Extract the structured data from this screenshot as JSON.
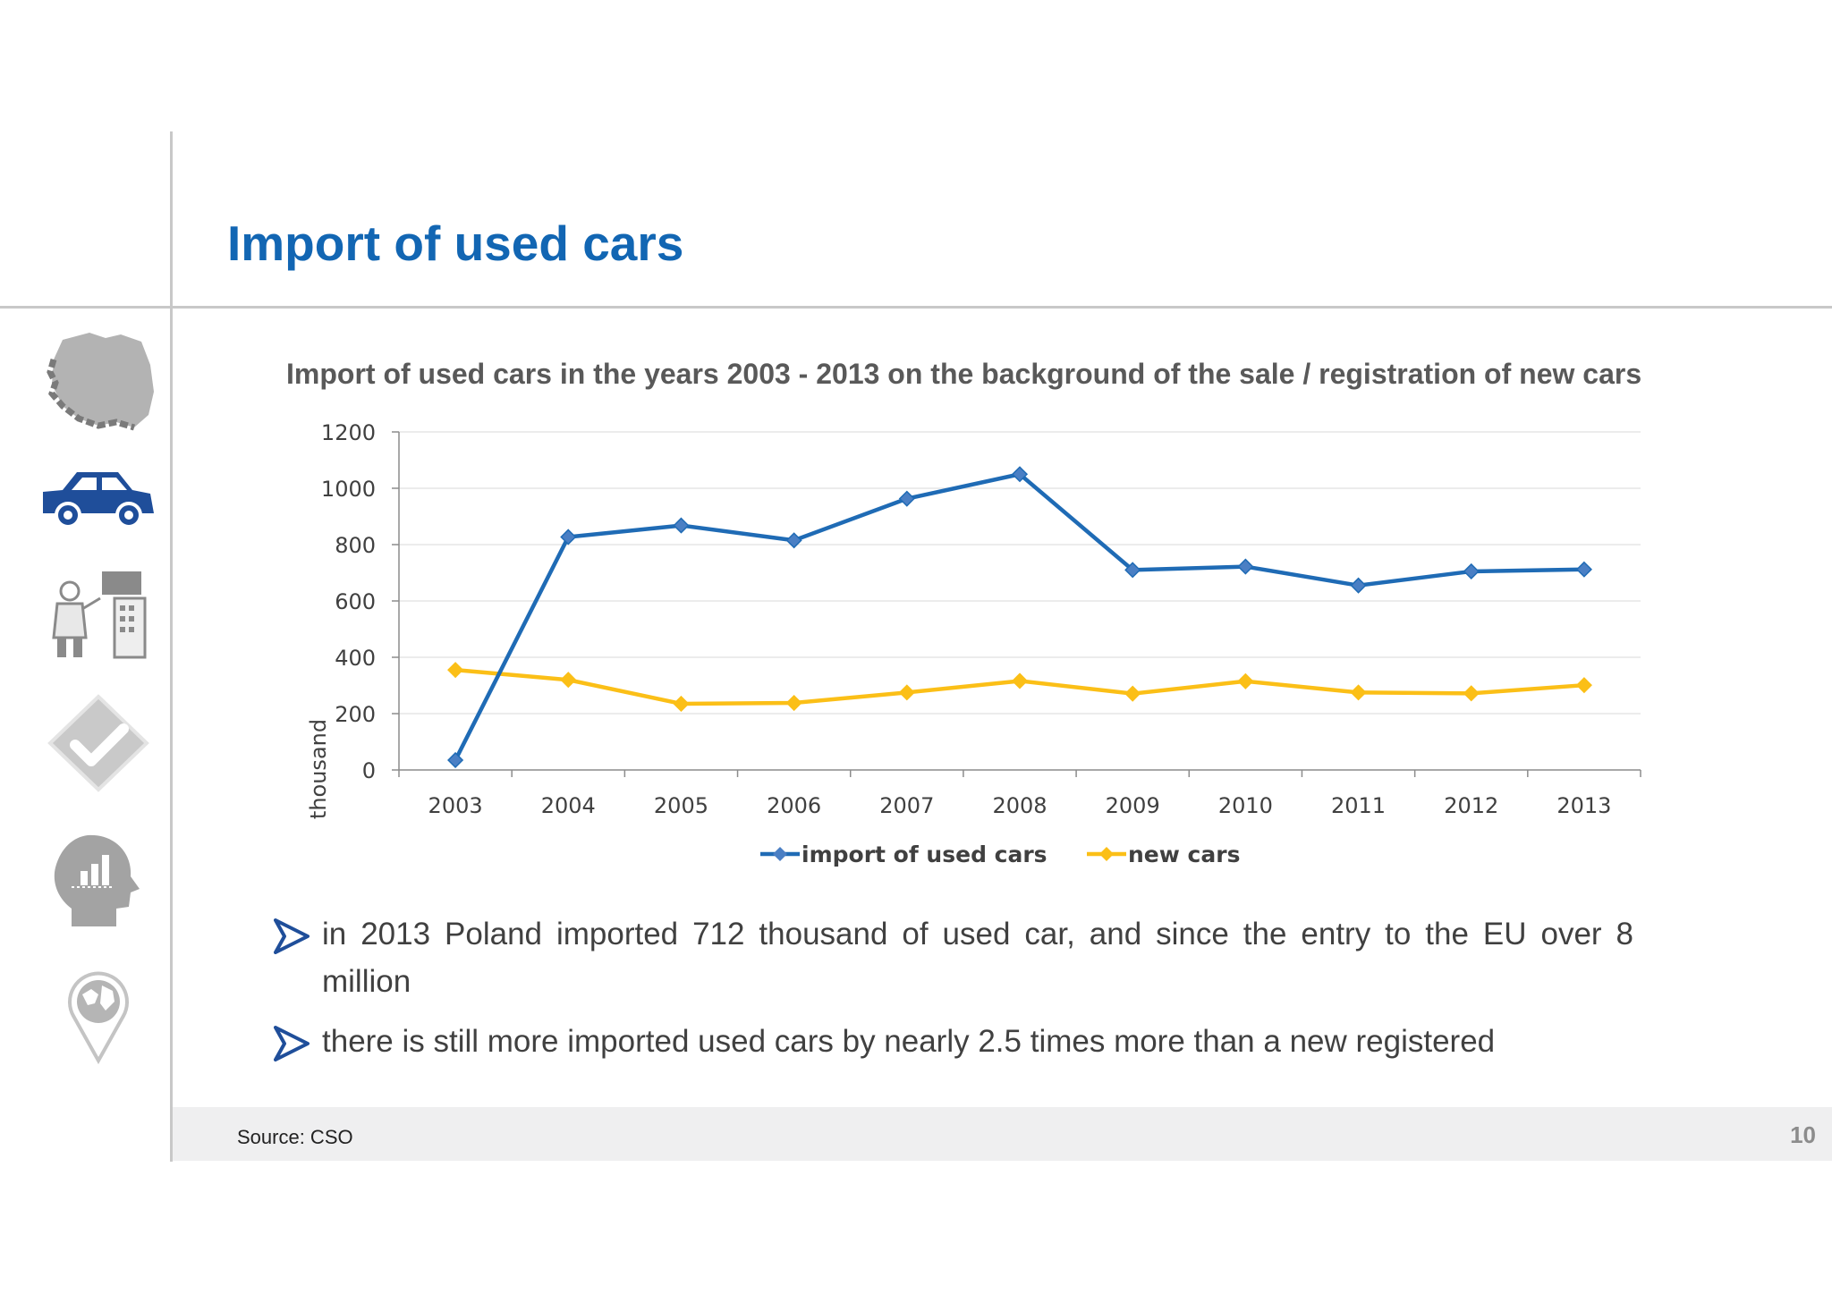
{
  "slide": {
    "title": "Import of used cars",
    "source": "Source: CSO",
    "page_number": "10"
  },
  "sidebar": {
    "icons": [
      "poland-map-icon",
      "car-icon",
      "doctor-machine-icon",
      "checkmark-icon",
      "head-chart-icon",
      "globe-pin-icon"
    ],
    "active_color": "#1f4e9a",
    "inactive_color": "#a6a6a6"
  },
  "bullets": [
    "in 2013 Poland imported 712 thousand of used car, and since the entry to the EU over 8 million",
    "there is still more imported used cars by nearly 2.5 times more than a new registered"
  ],
  "colors": {
    "title": "#1266b3",
    "bullet_arrow": "#1f4e9a"
  },
  "chart_data": {
    "type": "line",
    "title": "Import of used cars in the years 2003 - 2013 on the background of the sale / registration of new cars",
    "xlabel": "",
    "ylabel": "thousand",
    "ylim": [
      0,
      1200
    ],
    "yticks": [
      0,
      200,
      400,
      600,
      800,
      1000,
      1200
    ],
    "categories": [
      "2003",
      "2004",
      "2005",
      "2006",
      "2007",
      "2008",
      "2009",
      "2010",
      "2011",
      "2012",
      "2013"
    ],
    "series": [
      {
        "name": "import of used cars",
        "color": "#1f6bb5",
        "values": [
          35,
          827,
          868,
          815,
          963,
          1050,
          710,
          722,
          655,
          705,
          712
        ]
      },
      {
        "name": "new cars",
        "color": "#fbbf17",
        "values": [
          355,
          320,
          235,
          238,
          275,
          316,
          271,
          315,
          275,
          272,
          301
        ]
      }
    ],
    "grid": true,
    "legend": "bottom"
  }
}
